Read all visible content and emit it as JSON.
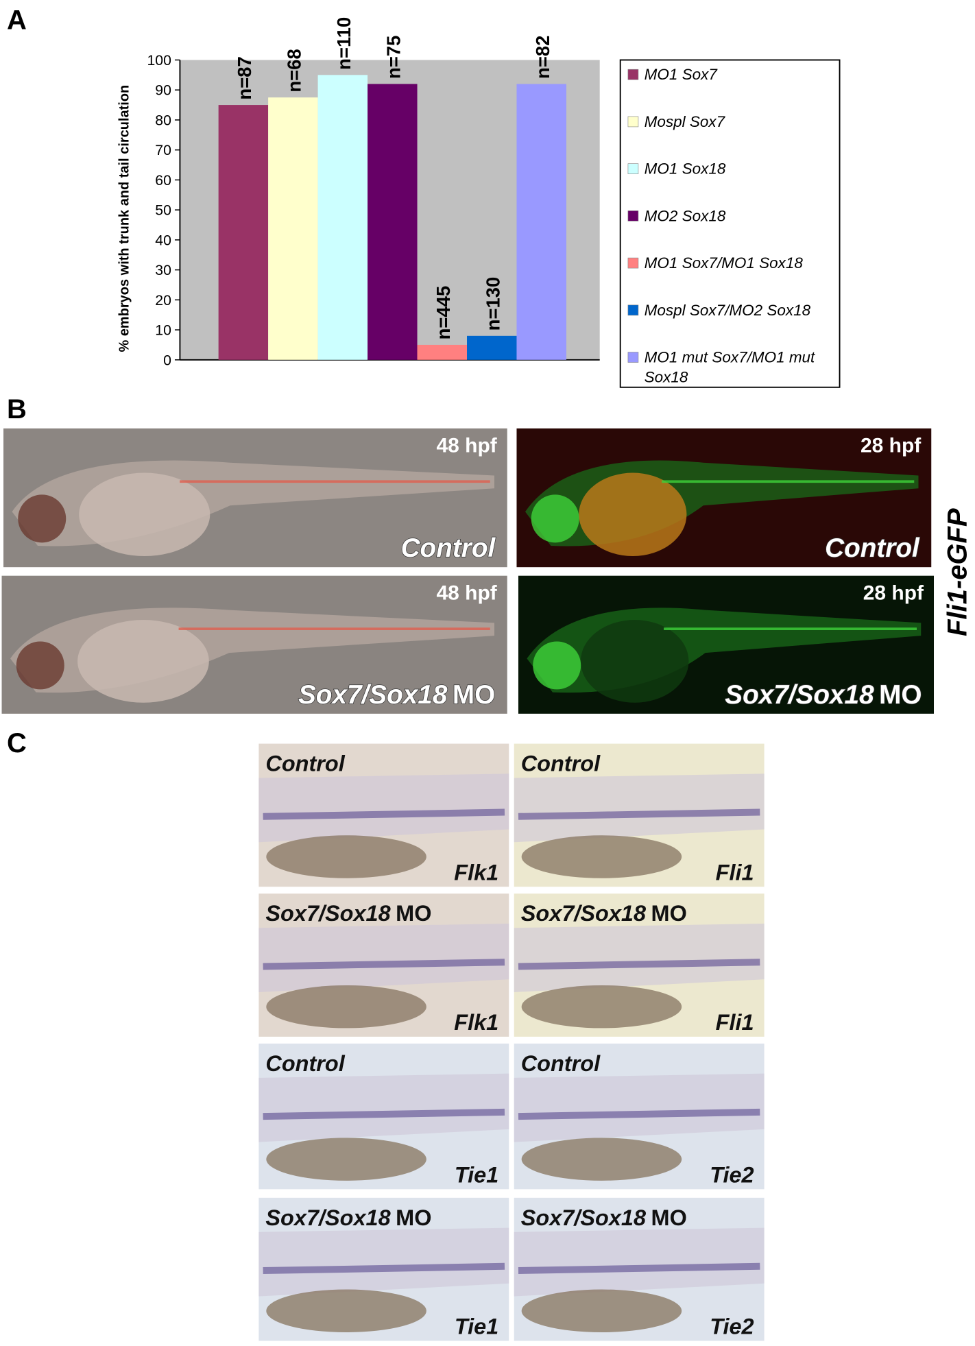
{
  "panel_labels": [
    "A",
    "B",
    "C"
  ],
  "chart_data": {
    "type": "bar",
    "ylabel": "% embryos with trunk and tail circulation",
    "ylim": [
      0,
      100
    ],
    "yticks": [
      0,
      10,
      20,
      30,
      40,
      50,
      60,
      70,
      80,
      90,
      100
    ],
    "series": [
      {
        "name": "MO1 Sox7",
        "color": "#993366",
        "values": [
          85
        ]
      },
      {
        "name": "Mospl Sox7",
        "color": "#ffffcc",
        "values": [
          87.5
        ]
      },
      {
        "name": "MO1 Sox18",
        "color": "#ccffff",
        "values": [
          95
        ]
      },
      {
        "name": "MO2 Sox18",
        "color": "#660066",
        "values": [
          92
        ]
      },
      {
        "name": "MO1 Sox7/MO1 Sox18",
        "color": "#ff8080",
        "values": [
          5
        ]
      },
      {
        "name": "Mospl Sox7/MO2 Sox18",
        "color": "#0066cc",
        "values": [
          8
        ]
      },
      {
        "name": "MO1 mut Sox7/MO1 mut Sox18",
        "color": "#9999ff",
        "values": [
          92
        ]
      }
    ],
    "annotations": [
      "n=87",
      "n=68",
      "n=110",
      "n=75",
      "n=445",
      "n=130",
      "n=82"
    ]
  },
  "panel_b": {
    "side_label": "Fli1-eGFP",
    "images": [
      {
        "stage": "48 hpf",
        "condition": "Control"
      },
      {
        "stage": "28 hpf",
        "condition": "Control"
      },
      {
        "stage": "48 hpf",
        "condition": "Sox7/Sox18",
        "condition_suffix": "MO"
      },
      {
        "stage": "28 hpf",
        "condition": "Sox7/Sox18",
        "condition_suffix": "MO"
      }
    ]
  },
  "panel_c": {
    "images": [
      {
        "condition": "Control",
        "gene": "Flk1"
      },
      {
        "condition": "Control",
        "gene": "Fli1"
      },
      {
        "condition": "Sox7/Sox18",
        "condition_suffix": "MO",
        "gene": "Flk1"
      },
      {
        "condition": "Sox7/Sox18",
        "condition_suffix": "MO",
        "gene": "Fli1"
      },
      {
        "condition": "Control",
        "gene": "Tie1"
      },
      {
        "condition": "Control",
        "gene": "Tie2"
      },
      {
        "condition": "Sox7/Sox18",
        "condition_suffix": "MO",
        "gene": "Tie1"
      },
      {
        "condition": "Sox7/Sox18",
        "condition_suffix": "MO",
        "gene": "Tie2"
      }
    ]
  }
}
